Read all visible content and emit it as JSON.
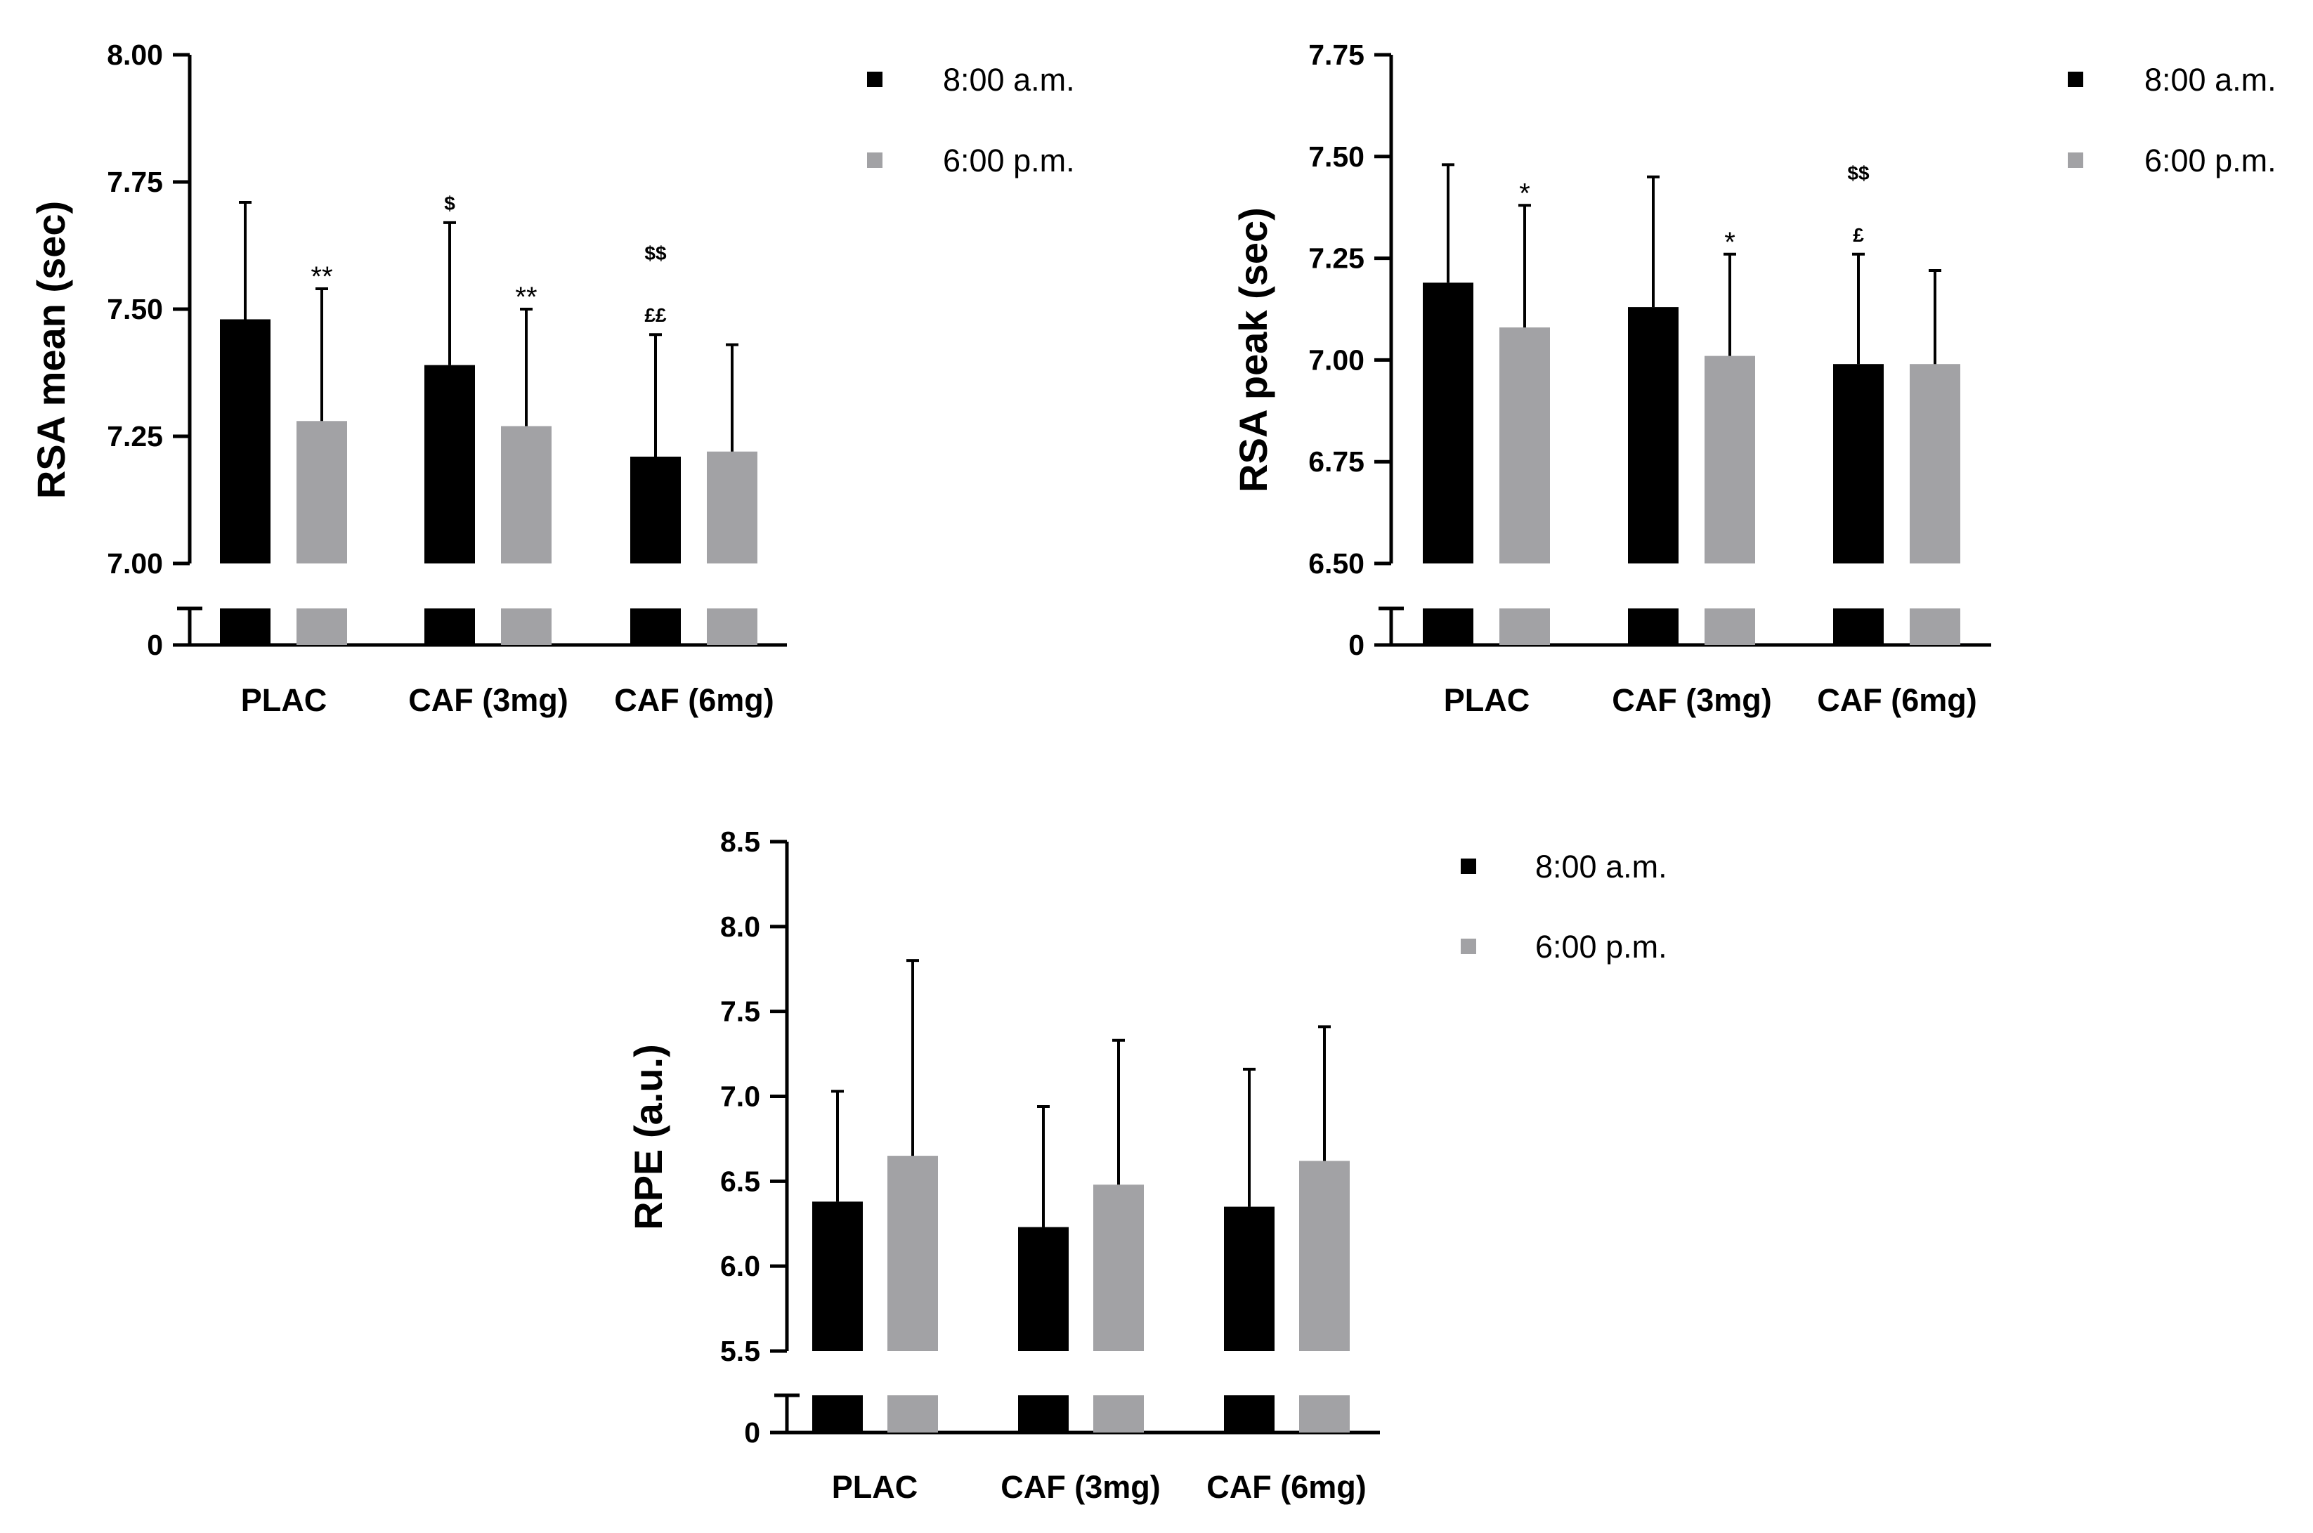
{
  "chart_data": [
    {
      "type": "bar",
      "ylabel": "RSA mean (sec)",
      "categories": [
        "PLAC",
        "CAF (3mg)",
        "CAF (6mg)"
      ],
      "ylim": [
        7.0,
        8.0
      ],
      "yticks": [
        "8.00",
        "7.75",
        "7.50",
        "7.25",
        "7.00"
      ],
      "ytick_values": [
        8.0,
        7.75,
        7.5,
        7.25,
        7.0
      ],
      "zero_label": "0",
      "series": [
        {
          "name": "8:00 a.m.",
          "color": "#000000",
          "values": [
            7.48,
            7.39,
            7.21
          ],
          "errors": [
            0.23,
            0.28,
            0.24
          ]
        },
        {
          "name": "6:00 p.m.",
          "color": "#A2A2A5",
          "values": [
            7.28,
            7.27,
            7.22
          ],
          "errors": [
            0.26,
            0.23,
            0.21
          ]
        }
      ],
      "annotations": [
        {
          "category": 0,
          "series": 1,
          "lines": [
            "**"
          ]
        },
        {
          "category": 1,
          "series": 0,
          "lines": [
            "$"
          ]
        },
        {
          "category": 1,
          "series": 1,
          "lines": [
            "**"
          ]
        },
        {
          "category": 2,
          "series": 0,
          "lines": [
            "$$",
            "££"
          ]
        }
      ]
    },
    {
      "type": "bar",
      "ylabel": "RSA peak (sec)",
      "categories": [
        "PLAC",
        "CAF (3mg)",
        "CAF (6mg)"
      ],
      "ylim": [
        6.5,
        7.75
      ],
      "yticks": [
        "7.75",
        "7.50",
        "7.25",
        "7.00",
        "6.75",
        "6.50"
      ],
      "ytick_values": [
        7.75,
        7.5,
        7.25,
        7.0,
        6.75,
        6.5
      ],
      "zero_label": "0",
      "series": [
        {
          "name": "8:00 a.m.",
          "color": "#000000",
          "values": [
            7.19,
            7.13,
            6.99
          ],
          "errors": [
            0.29,
            0.32,
            0.27
          ]
        },
        {
          "name": "6:00 p.m.",
          "color": "#A2A2A5",
          "values": [
            7.08,
            7.01,
            6.99
          ],
          "errors": [
            0.3,
            0.25,
            0.23
          ]
        }
      ],
      "annotations": [
        {
          "category": 0,
          "series": 1,
          "lines": [
            "*"
          ]
        },
        {
          "category": 1,
          "series": 1,
          "lines": [
            "*"
          ]
        },
        {
          "category": 2,
          "series": 0,
          "lines": [
            "$$",
            "£"
          ]
        }
      ]
    },
    {
      "type": "bar",
      "ylabel": "RPE (a.u.)",
      "categories": [
        "PLAC",
        "CAF (3mg)",
        "CAF (6mg)"
      ],
      "ylim": [
        5.5,
        8.5
      ],
      "yticks": [
        "8.5",
        "8.0",
        "7.5",
        "7.0",
        "6.5",
        "6.0",
        "5.5"
      ],
      "ytick_values": [
        8.5,
        8.0,
        7.5,
        7.0,
        6.5,
        6.0,
        5.5
      ],
      "zero_label": "0",
      "series": [
        {
          "name": "8:00 a.m.",
          "color": "#000000",
          "values": [
            6.38,
            6.23,
            6.35
          ],
          "errors": [
            0.65,
            0.71,
            0.81
          ]
        },
        {
          "name": "6:00 p.m.",
          "color": "#A2A2A5",
          "values": [
            6.65,
            6.48,
            6.62
          ],
          "errors": [
            1.15,
            0.85,
            0.79
          ]
        }
      ],
      "annotations": []
    }
  ]
}
